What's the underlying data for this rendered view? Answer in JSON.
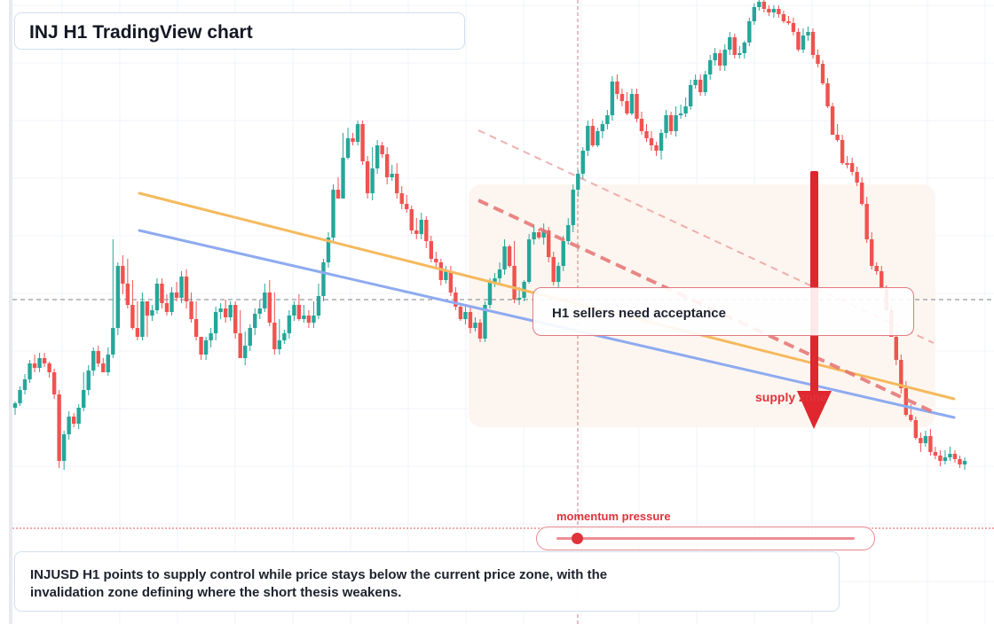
{
  "header": {
    "title": "INJ H1 TradingView chart"
  },
  "annotations": {
    "bias_label": "H1 sellers need acceptance",
    "supply_label": "supply zone",
    "momentum_label": "momentum pressure",
    "summary": "INJUSD H1 points to supply control while price stays below the current price zone, with the invalidation zone defining where the short thesis weakens."
  },
  "momentum": {
    "level": 0.07
  },
  "colors": {
    "up": "#26a69a",
    "down": "#ef5350",
    "orange_line": "#f5b95d",
    "blue_line": "#8eaaf0",
    "red_dash": "#e57373",
    "arrow": "#e0262e",
    "zone": "#fdf6f0",
    "accent": "#e0323a"
  },
  "chart_data": {
    "type": "candlestick",
    "symbol": "INJUSD",
    "timeframe": "H1",
    "ylim": [
      0,
      704
    ],
    "y_note": "relative price scale (no price axis printed); higher value = higher price",
    "candles": [
      [
        460,
        455,
        468,
        453
      ],
      [
        455,
        440,
        458,
        436
      ],
      [
        440,
        428,
        445,
        422
      ],
      [
        428,
        410,
        432,
        406
      ],
      [
        410,
        415,
        420,
        400
      ],
      [
        415,
        404,
        420,
        398
      ],
      [
        404,
        410,
        414,
        398
      ],
      [
        410,
        420,
        426,
        408
      ],
      [
        420,
        445,
        450,
        416
      ],
      [
        445,
        520,
        528,
        440
      ],
      [
        520,
        490,
        530,
        486
      ],
      [
        490,
        470,
        496,
        464
      ],
      [
        470,
        478,
        482,
        466
      ],
      [
        478,
        460,
        484,
        456
      ],
      [
        460,
        440,
        464,
        420
      ],
      [
        440,
        418,
        446,
        412
      ],
      [
        418,
        396,
        424,
        392
      ],
      [
        396,
        410,
        414,
        390
      ],
      [
        410,
        420,
        416,
        404
      ],
      [
        420,
        400,
        424,
        392
      ],
      [
        400,
        370,
        404,
        270
      ],
      [
        370,
        300,
        378,
        296
      ],
      [
        300,
        320,
        332,
        288
      ],
      [
        320,
        344,
        348,
        292
      ],
      [
        344,
        370,
        372,
        316
      ],
      [
        370,
        380,
        384,
        340
      ],
      [
        380,
        340,
        384,
        330
      ],
      [
        340,
        356,
        380,
        342
      ],
      [
        356,
        350,
        362,
        344
      ],
      [
        350,
        320,
        354,
        314
      ],
      [
        320,
        342,
        348,
        314
      ],
      [
        342,
        352,
        356,
        332
      ],
      [
        352,
        330,
        356,
        324
      ],
      [
        330,
        336,
        340,
        318
      ],
      [
        336,
        312,
        342,
        306
      ],
      [
        312,
        340,
        348,
        304
      ],
      [
        340,
        360,
        364,
        330
      ],
      [
        360,
        380,
        384,
        340
      ],
      [
        380,
        400,
        406,
        380
      ],
      [
        400,
        384,
        406,
        380
      ],
      [
        384,
        376,
        392,
        370
      ],
      [
        376,
        352,
        384,
        346
      ],
      [
        352,
        348,
        360,
        342
      ],
      [
        348,
        358,
        364,
        338
      ],
      [
        358,
        344,
        362,
        340
      ],
      [
        344,
        376,
        382,
        340
      ],
      [
        376,
        404,
        404,
        350
      ],
      [
        404,
        390,
        412,
        374
      ],
      [
        390,
        370,
        396,
        366
      ],
      [
        370,
        354,
        378,
        348
      ],
      [
        354,
        348,
        360,
        338
      ],
      [
        348,
        330,
        352,
        320
      ],
      [
        330,
        364,
        368,
        316
      ],
      [
        364,
        394,
        400,
        330
      ],
      [
        394,
        384,
        400,
        360
      ],
      [
        384,
        376,
        388,
        372
      ],
      [
        376,
        356,
        382,
        350
      ],
      [
        356,
        344,
        362,
        340
      ],
      [
        344,
        360,
        362,
        332
      ],
      [
        360,
        356,
        364,
        344
      ],
      [
        356,
        364,
        370,
        350
      ],
      [
        364,
        356,
        370,
        340
      ],
      [
        356,
        334,
        360,
        320
      ],
      [
        334,
        296,
        340,
        292
      ],
      [
        296,
        268,
        302,
        262
      ],
      [
        268,
        214,
        274,
        208
      ],
      [
        214,
        224,
        224,
        200
      ],
      [
        224,
        178,
        224,
        150
      ],
      [
        178,
        156,
        180,
        144
      ],
      [
        156,
        160,
        164,
        150
      ],
      [
        160,
        140,
        164,
        136
      ],
      [
        140,
        182,
        186,
        136
      ],
      [
        182,
        218,
        224,
        176
      ],
      [
        218,
        190,
        226,
        166
      ],
      [
        190,
        164,
        196,
        158
      ],
      [
        164,
        174,
        178,
        160
      ],
      [
        174,
        200,
        208,
        166
      ],
      [
        200,
        196,
        204,
        186
      ],
      [
        196,
        218,
        224,
        184
      ],
      [
        218,
        230,
        236,
        210
      ],
      [
        230,
        236,
        240,
        220
      ],
      [
        236,
        260,
        264,
        232
      ],
      [
        260,
        264,
        270,
        246
      ],
      [
        264,
        248,
        270,
        240
      ],
      [
        248,
        272,
        280,
        244
      ],
      [
        272,
        292,
        296,
        266
      ],
      [
        292,
        296,
        302,
        284
      ],
      [
        296,
        316,
        322,
        292
      ],
      [
        316,
        306,
        320,
        300
      ],
      [
        306,
        330,
        334,
        300
      ],
      [
        330,
        346,
        350,
        324
      ],
      [
        346,
        360,
        362,
        342
      ],
      [
        360,
        352,
        366,
        344
      ],
      [
        352,
        370,
        376,
        346
      ],
      [
        370,
        364,
        374,
        358
      ],
      [
        364,
        382,
        386,
        360
      ],
      [
        382,
        344,
        386,
        340
      ],
      [
        344,
        318,
        348,
        314
      ],
      [
        318,
        314,
        324,
        308
      ],
      [
        314,
        304,
        320,
        296
      ],
      [
        304,
        278,
        310,
        270
      ],
      [
        278,
        300,
        302,
        276
      ],
      [
        300,
        338,
        342,
        272
      ],
      [
        338,
        336,
        344,
        324
      ],
      [
        336,
        318,
        340,
        316
      ],
      [
        318,
        270,
        320,
        264
      ],
      [
        270,
        262,
        276,
        254
      ],
      [
        262,
        268,
        270,
        258
      ],
      [
        268,
        260,
        276,
        252
      ],
      [
        260,
        290,
        296,
        256
      ],
      [
        290,
        318,
        322,
        284
      ],
      [
        318,
        300,
        324,
        296
      ],
      [
        300,
        272,
        306,
        266
      ],
      [
        272,
        254,
        276,
        246
      ],
      [
        254,
        214,
        262,
        208
      ],
      [
        214,
        196,
        222,
        192
      ],
      [
        196,
        170,
        202,
        166
      ],
      [
        170,
        142,
        176,
        136
      ],
      [
        142,
        164,
        166,
        134
      ],
      [
        164,
        148,
        166,
        144
      ],
      [
        148,
        140,
        156,
        136
      ],
      [
        140,
        130,
        146,
        124
      ],
      [
        130,
        92,
        136,
        86
      ],
      [
        92,
        106,
        112,
        84
      ],
      [
        106,
        114,
        120,
        100
      ],
      [
        114,
        128,
        130,
        104
      ],
      [
        128,
        106,
        130,
        100
      ],
      [
        106,
        134,
        138,
        100
      ],
      [
        134,
        148,
        152,
        126
      ],
      [
        148,
        156,
        160,
        140
      ],
      [
        156,
        164,
        170,
        148
      ],
      [
        164,
        170,
        176,
        160
      ],
      [
        170,
        150,
        180,
        146
      ],
      [
        150,
        130,
        156,
        124
      ],
      [
        130,
        148,
        152,
        126
      ],
      [
        148,
        130,
        154,
        120
      ],
      [
        130,
        128,
        134,
        118
      ],
      [
        128,
        120,
        132,
        110
      ],
      [
        120,
        96,
        124,
        90
      ],
      [
        96,
        90,
        100,
        84
      ],
      [
        90,
        104,
        108,
        84
      ],
      [
        104,
        84,
        108,
        80
      ],
      [
        84,
        68,
        90,
        62
      ],
      [
        68,
        60,
        74,
        54
      ],
      [
        60,
        74,
        80,
        56
      ],
      [
        74,
        56,
        80,
        50
      ],
      [
        56,
        42,
        62,
        36
      ],
      [
        42,
        62,
        66,
        38
      ],
      [
        62,
        60,
        66,
        52
      ],
      [
        60,
        48,
        66,
        46
      ],
      [
        48,
        24,
        52,
        20
      ],
      [
        24,
        8,
        28,
        4
      ],
      [
        8,
        2,
        12,
        0
      ],
      [
        2,
        10,
        14,
        0
      ],
      [
        10,
        14,
        18,
        6
      ],
      [
        14,
        10,
        20,
        6
      ],
      [
        10,
        16,
        20,
        6
      ],
      [
        16,
        24,
        26,
        12
      ],
      [
        24,
        26,
        28,
        18
      ],
      [
        26,
        36,
        40,
        20
      ],
      [
        36,
        56,
        58,
        32
      ],
      [
        56,
        40,
        60,
        32
      ],
      [
        40,
        36,
        46,
        30
      ],
      [
        36,
        62,
        66,
        32
      ],
      [
        62,
        72,
        76,
        56
      ],
      [
        72,
        94,
        96,
        68
      ],
      [
        94,
        120,
        122,
        88
      ],
      [
        120,
        152,
        152,
        116
      ],
      [
        152,
        158,
        160,
        140
      ],
      [
        158,
        184,
        186,
        152
      ],
      [
        184,
        184,
        190,
        176
      ],
      [
        184,
        194,
        198,
        178
      ],
      [
        194,
        206,
        210,
        188
      ],
      [
        206,
        230,
        232,
        200
      ],
      [
        230,
        270,
        274,
        222
      ],
      [
        270,
        300,
        304,
        262
      ],
      [
        300,
        306,
        310,
        296
      ],
      [
        306,
        326,
        326,
        300
      ],
      [
        326,
        350,
        350,
        322
      ],
      [
        350,
        380,
        380,
        344
      ],
      [
        380,
        406,
        412,
        374
      ],
      [
        406,
        438,
        444,
        400
      ],
      [
        438,
        468,
        470,
        430
      ],
      [
        468,
        474,
        476,
        456
      ],
      [
        474,
        494,
        496,
        470
      ],
      [
        494,
        500,
        510,
        488
      ],
      [
        500,
        492,
        504,
        486
      ],
      [
        492,
        510,
        514,
        484
      ],
      [
        510,
        514,
        518,
        504
      ],
      [
        514,
        520,
        526,
        508
      ],
      [
        520,
        516,
        524,
        508
      ],
      [
        516,
        512,
        520,
        504
      ],
      [
        512,
        518,
        522,
        508
      ],
      [
        518,
        524,
        528,
        514
      ],
      [
        524,
        520,
        530,
        516
      ]
    ],
    "orange_trendline": "descending from left to right",
    "blue_trendline": "descending from left to right",
    "projection": "downward arrow through supply zone"
  }
}
